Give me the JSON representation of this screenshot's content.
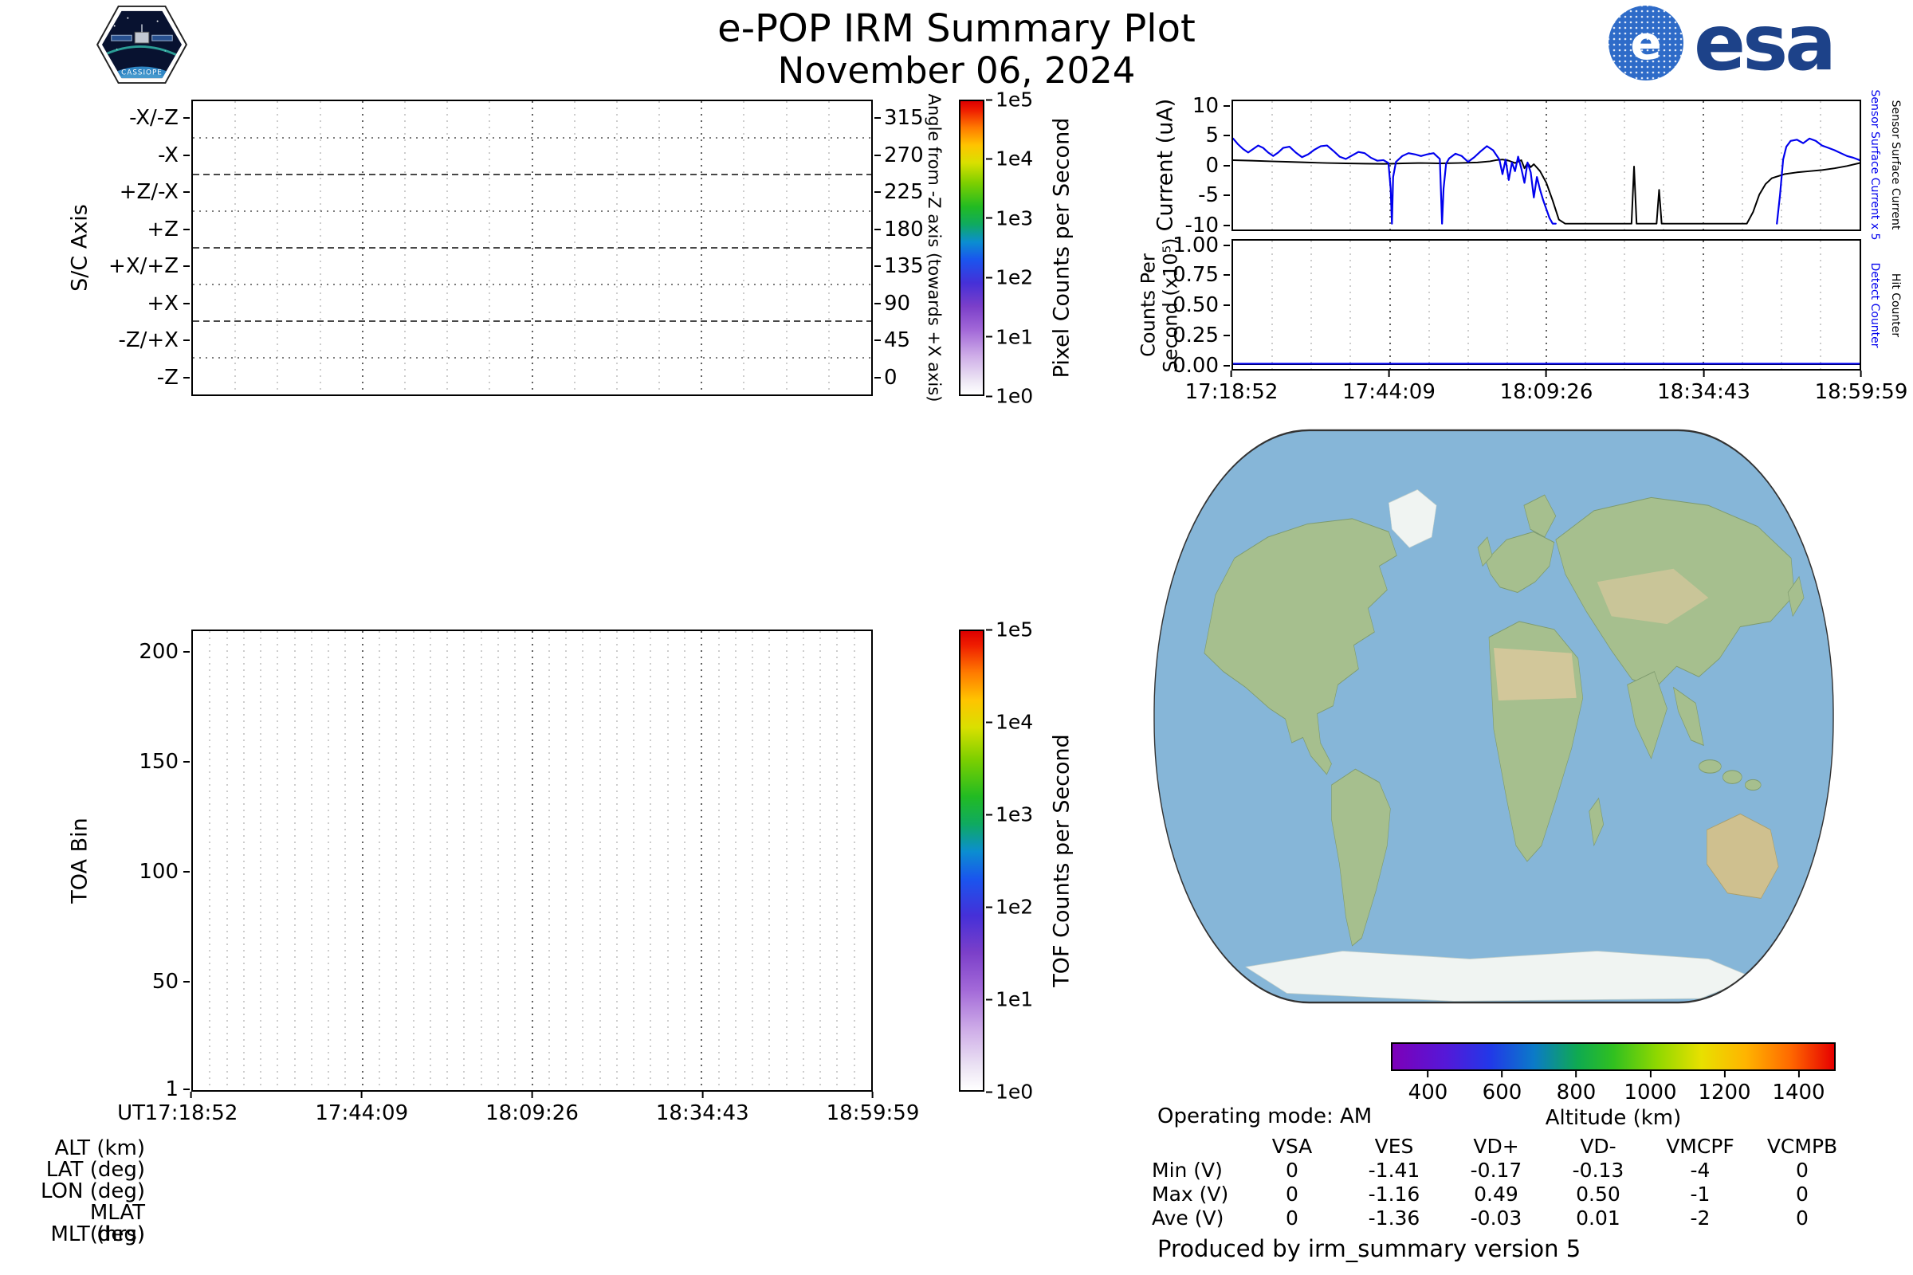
{
  "header": {
    "title": "e-POP IRM Summary Plot",
    "date": "November 06, 2024"
  },
  "logos": {
    "cassiope_label": "CASSIOPE",
    "esa_e": "e",
    "esa_label": "esa",
    "esa_blue": "#2e6bc8",
    "esa_word_blue": "#1d4289"
  },
  "time_axis": {
    "label": "UT",
    "ticks": [
      "17:18:52",
      "17:44:09",
      "18:09:26",
      "18:34:43",
      "18:59:59"
    ]
  },
  "ephemeris_rows": [
    "ALT (km)",
    "LAT (deg)",
    "LON (deg)",
    "MLAT (deg)",
    "MLT (hrs)"
  ],
  "status": {
    "operating_mode": "Operating mode: AM"
  },
  "voltage_table": {
    "columns": [
      "VSA",
      "VES",
      "VD+",
      "VD-",
      "VMCPF",
      "VCMPB"
    ],
    "rows": [
      {
        "label": "Min (V)",
        "values": [
          "0",
          "-1.41",
          "-0.17",
          "-0.13",
          "-4",
          "0"
        ]
      },
      {
        "label": "Max (V)",
        "values": [
          "0",
          "-1.16",
          "0.49",
          "0.50",
          "-1",
          "0"
        ]
      },
      {
        "label": "Ave (V)",
        "values": [
          "0",
          "-1.36",
          "-0.03",
          "0.01",
          "-2",
          "0"
        ]
      }
    ]
  },
  "footer": {
    "credit": "Produced by irm_summary version 5"
  },
  "map": {
    "colors": {
      "ocean": "#86b6d8",
      "land": "#a6bf8e",
      "ice": "#f0f4f2",
      "desert": "#d9c89c",
      "outline": "#333333"
    }
  },
  "chart_data": [
    {
      "id": "spacecraft_axis_pixel_counts",
      "type": "heatmap",
      "ylabel": "S/C Axis",
      "categories": [
        "-X/-Z",
        "-X",
        "+Z/-X",
        "+Z",
        "+X/+Z",
        "+X",
        "-Z/+X",
        "-Z"
      ],
      "right_axis": {
        "label": "Angle from -Z axis (towards +X axis)",
        "ticks": [
          315,
          270,
          225,
          180,
          135,
          90,
          45,
          0
        ]
      },
      "x_ticks": [
        "17:18:52",
        "17:44:09",
        "18:09:26",
        "18:34:43",
        "18:59:59"
      ],
      "colorbar": {
        "label": "Pixel Counts per Second",
        "scale": "log",
        "ticks": [
          "1e5",
          "1e4",
          "1e3",
          "1e2",
          "1e1",
          "1e0"
        ]
      },
      "values": []
    },
    {
      "id": "toa_bin_tof_counts",
      "type": "heatmap",
      "ylabel": "TOA Bin",
      "ylim": [
        0,
        210
      ],
      "yticks": [
        200,
        150,
        100,
        50,
        1
      ],
      "xlabel": "UT",
      "x_ticks": [
        "17:18:52",
        "17:44:09",
        "18:09:26",
        "18:34:43",
        "18:59:59"
      ],
      "colorbar": {
        "label": "TOF Counts per Second",
        "scale": "log",
        "ticks": [
          "1e5",
          "1e4",
          "1e3",
          "1e2",
          "1e1",
          "1e0"
        ]
      },
      "values": []
    },
    {
      "id": "sensor_surface_current",
      "type": "line",
      "ylabel": "Current (uA)",
      "ylim": [
        -11,
        11
      ],
      "yticks": [
        10,
        5,
        0,
        -5,
        -10
      ],
      "x_ticks": [
        "17:18:52",
        "17:44:09",
        "18:09:26",
        "18:34:43",
        "18:59:59"
      ],
      "right_labels": [
        {
          "text": "Sensor Surface Current x 5",
          "color": "#0000ee"
        },
        {
          "text": "Sensor Surface Current",
          "color": "#000000"
        }
      ],
      "series": [
        {
          "name": "Sensor Surface Current",
          "color": "#000000",
          "width": 2,
          "segments": [
            {
              "x": [
                0,
                0.03,
                0.06,
                0.09,
                0.12,
                0.15,
                0.18,
                0.21,
                0.24,
                0.255,
                0.27,
                0.3,
                0.33,
                0.36,
                0.39,
                0.41,
                0.42,
                0.43,
                0.44,
                0.45,
                0.46,
                0.465,
                0.47,
                0.475,
                0.48,
                0.49,
                0.5,
                0.51,
                0.52,
                0.53,
                0.636,
                0.64,
                0.644,
                0.676,
                0.68,
                0.684,
                0.82,
                0.83,
                0.84,
                0.85,
                0.86,
                0.88,
                0.9,
                0.92,
                0.94,
                0.96,
                0.98,
                1.0
              ],
              "y": [
                0.9,
                0.8,
                0.7,
                0.6,
                0.5,
                0.4,
                0.35,
                0.3,
                0.25,
                0.3,
                0.35,
                0.4,
                0.35,
                0.4,
                0.5,
                0.7,
                0.9,
                1.0,
                0.8,
                0.4,
                0.9,
                -0.5,
                0.4,
                -0.3,
                0.2,
                -1.0,
                -3.0,
                -6.0,
                -9.3,
                -10.0,
                -10.0,
                -0.2,
                -10.0,
                -10.0,
                -4.2,
                -10.0,
                -10.0,
                -8.0,
                -5.0,
                -3.2,
                -2.2,
                -1.5,
                -1.2,
                -1.0,
                -0.8,
                -0.5,
                -0.1,
                0.4
              ]
            }
          ]
        },
        {
          "name": "Sensor Surface Current x 5",
          "color": "#0000ee",
          "width": 2.2,
          "segments": [
            {
              "x": [
                0,
                0.008,
                0.016,
                0.024,
                0.032,
                0.04,
                0.048,
                0.056,
                0.064,
                0.072,
                0.08,
                0.09,
                0.1,
                0.11,
                0.12,
                0.13,
                0.14,
                0.15,
                0.16,
                0.17,
                0.18,
                0.19,
                0.2,
                0.21,
                0.22,
                0.23,
                0.24,
                0.248,
                0.2515,
                0.2535,
                0.2555,
                0.26,
                0.27,
                0.28,
                0.29,
                0.3,
                0.31,
                0.32,
                0.33,
                0.3335,
                0.336,
                0.34,
                0.345,
                0.355,
                0.365,
                0.375,
                0.385,
                0.395,
                0.405,
                0.415,
                0.425,
                0.43,
                0.435,
                0.44,
                0.445,
                0.45,
                0.455,
                0.46,
                0.465,
                0.47,
                0.475,
                0.48,
                0.485,
                0.49,
                0.495,
                0.5,
                0.505,
                0.51,
                0.515
              ],
              "y": [
                4.6,
                3.6,
                2.8,
                2.2,
                2.8,
                3.4,
                3.0,
                2.2,
                1.6,
                2.2,
                3.0,
                3.2,
                2.2,
                1.4,
                1.9,
                2.7,
                3.3,
                3.4,
                2.5,
                1.5,
                1.1,
                1.7,
                2.3,
                2.1,
                1.3,
                0.8,
                0.9,
                0.4,
                -4.0,
                -10.0,
                -2.0,
                0.6,
                1.6,
                2.1,
                1.9,
                1.6,
                1.9,
                2.1,
                1.1,
                -10.0,
                -4.0,
                0.3,
                1.2,
                2.0,
                1.6,
                0.6,
                1.4,
                2.4,
                3.3,
                2.6,
                1.0,
                -1.5,
                1.0,
                -2.5,
                0.5,
                -1.0,
                1.5,
                -0.5,
                -3.0,
                0.5,
                -1.2,
                -5.5,
                -2.0,
                -4.2,
                -6.0,
                -7.5,
                -9.0,
                -10.0,
                -10.0
              ]
            },
            {
              "x": [
                0.868,
                0.873,
                0.878,
                0.883,
                0.89,
                0.9,
                0.91,
                0.92,
                0.93,
                0.94,
                0.95,
                0.96,
                0.97,
                0.98,
                0.99,
                1.0
              ],
              "y": [
                -10.0,
                -5.0,
                1.0,
                3.2,
                4.2,
                4.4,
                3.8,
                4.6,
                4.2,
                3.4,
                3.0,
                2.6,
                2.1,
                1.6,
                1.3,
                0.9
              ]
            }
          ]
        }
      ]
    },
    {
      "id": "detect_hit_counters",
      "type": "line",
      "ylabel": "Counts Per Second (x10⁵)",
      "ylabel_lines": [
        "Counts Per",
        "Second (x10⁵)"
      ],
      "ylim": [
        -0.04,
        1.05
      ],
      "yticks": [
        "1.00",
        "0.75",
        "0.50",
        "0.25",
        "0.00"
      ],
      "x_ticks": [
        "17:18:52",
        "17:44:09",
        "18:09:26",
        "18:34:43",
        "18:59:59"
      ],
      "right_labels": [
        {
          "text": "Detect Counter",
          "color": "#0000ee"
        },
        {
          "text": "Hit Counter",
          "color": "#000000"
        }
      ],
      "series": [
        {
          "name": "Hit Counter",
          "color": "#000000",
          "width": 2,
          "segments": [
            {
              "x": [
                0,
                1
              ],
              "y": [
                0.0,
                0.0
              ]
            }
          ]
        },
        {
          "name": "Detect Counter",
          "color": "#0000ee",
          "width": 2.2,
          "segments": [
            {
              "x": [
                0,
                1
              ],
              "y": [
                0.004,
                0.004
              ]
            }
          ]
        }
      ]
    },
    {
      "id": "ground_track_map",
      "type": "map",
      "colorbar": {
        "label": "Altitude (km)",
        "ticks": [
          400,
          600,
          800,
          1000,
          1200,
          1400
        ],
        "range": [
          300,
          1500
        ]
      }
    }
  ]
}
